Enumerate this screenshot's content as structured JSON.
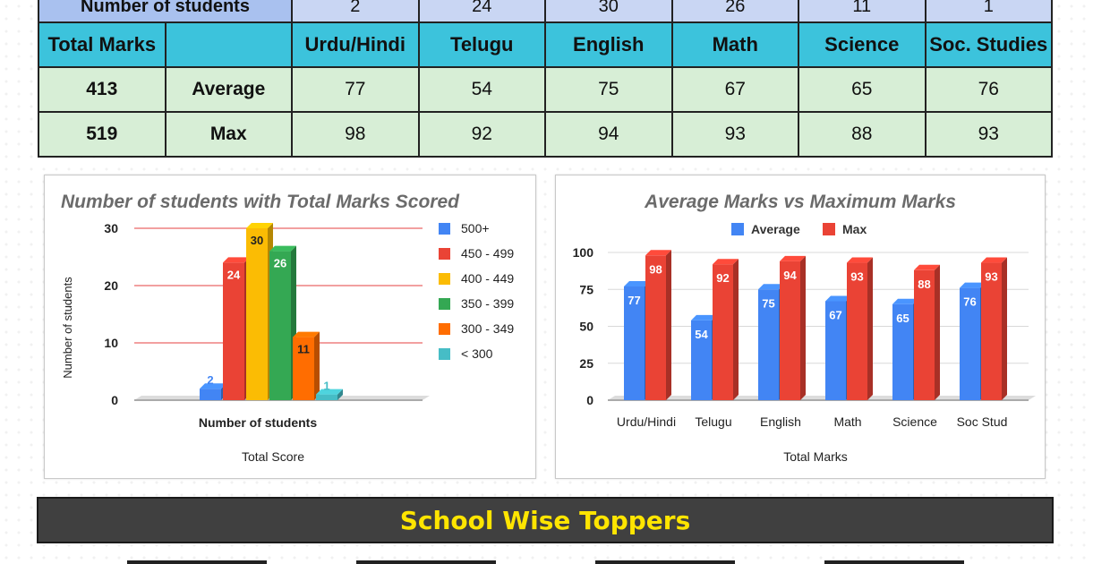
{
  "summary": {
    "students_label": "Number of students",
    "students_counts": [
      "2",
      "24",
      "30",
      "26",
      "11",
      "1"
    ],
    "total_marks_label": "Total Marks",
    "subjects": [
      "Urdu/Hindi",
      "Telugu",
      "English",
      "Math",
      "Science",
      "Soc. Studies"
    ],
    "average_total": "413",
    "average_label": "Average",
    "average_values": [
      "77",
      "54",
      "75",
      "67",
      "65",
      "76"
    ],
    "max_total": "519",
    "max_label": "Max",
    "max_values": [
      "98",
      "92",
      "94",
      "93",
      "88",
      "93"
    ]
  },
  "chart_data": [
    {
      "type": "bar",
      "title": "Number of students with Total Marks Scored",
      "xlabel": "Total Score",
      "ylabel": "Number of students",
      "category": "Number of students",
      "ylim": [
        0,
        30
      ],
      "yticks": [
        "0",
        "10",
        "20",
        "30"
      ],
      "grid": true,
      "legend": "right",
      "series": [
        {
          "name": "500+",
          "value": 2,
          "color": "#4285f4"
        },
        {
          "name": "450 - 499",
          "value": 24,
          "color": "#ea4335"
        },
        {
          "name": "400 - 449",
          "value": 30,
          "color": "#fbbc04"
        },
        {
          "name": "350 - 399",
          "value": 26,
          "color": "#34a853"
        },
        {
          "name": "300 - 349",
          "value": 11,
          "color": "#ff6d01"
        },
        {
          "name": "< 300",
          "value": 1,
          "color": "#46bdc6"
        }
      ]
    },
    {
      "type": "bar",
      "title": "Average Marks vs Maximum Marks",
      "xlabel": "Total Marks",
      "ylabel": "",
      "ylim": [
        0,
        100
      ],
      "yticks": [
        "0",
        "25",
        "50",
        "75",
        "100"
      ],
      "grid": true,
      "legend": "top",
      "categories": [
        "Urdu/Hindi",
        "Telugu",
        "English",
        "Math",
        "Science",
        "Soc Stud"
      ],
      "series": [
        {
          "name": "Average",
          "values": [
            77,
            54,
            75,
            67,
            65,
            76
          ],
          "color": "#4285f4"
        },
        {
          "name": "Max",
          "values": [
            98,
            92,
            94,
            93,
            88,
            93
          ],
          "color": "#ea4335"
        }
      ]
    }
  ],
  "banner": {
    "title": "School Wise Toppers"
  }
}
